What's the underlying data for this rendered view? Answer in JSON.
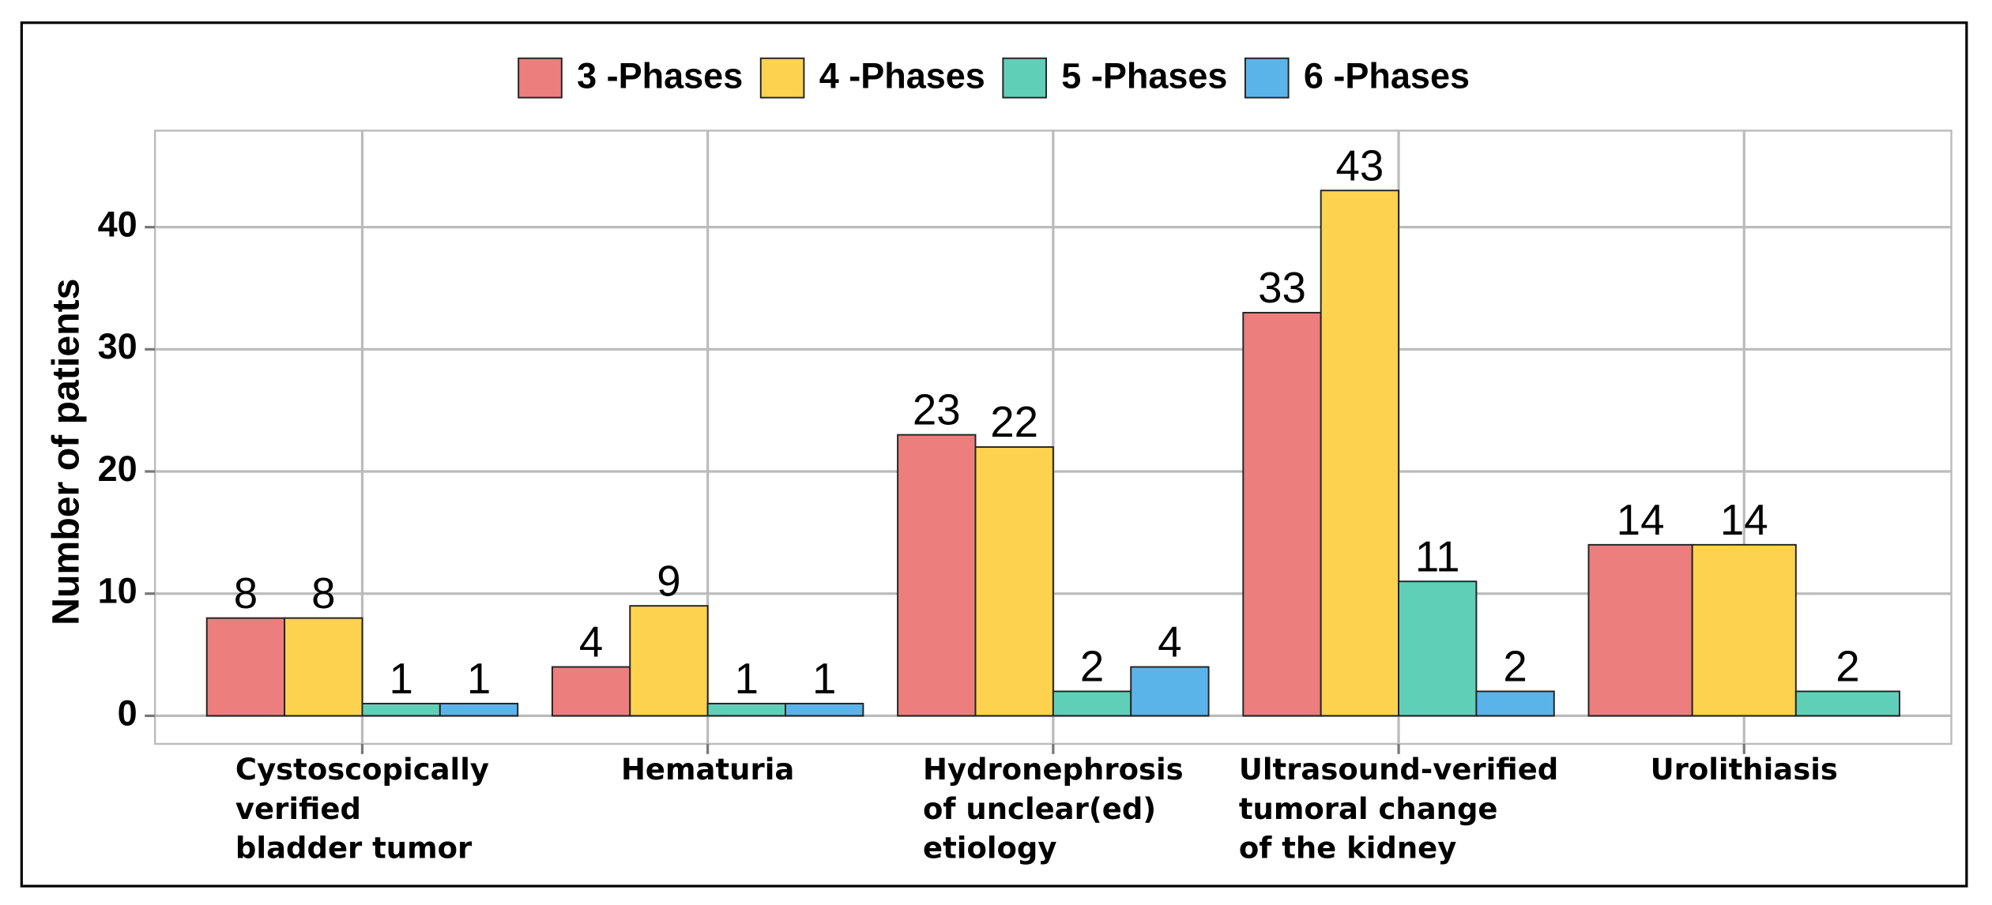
{
  "chart_data": {
    "type": "bar",
    "y_label": "Number of patients",
    "categories": [
      "Cystoscopically\nverified\nbladder tumor",
      "Hematuria",
      "Hydronephrosis\nof unclear(ed)\netiology",
      "Ultrasound-verified\ntumoral change\nof the kidney",
      "Urolithiasis"
    ],
    "series": [
      {
        "name": "3 -Phases",
        "color": "#ec7e7e",
        "values": [
          8,
          4,
          23,
          33,
          14
        ]
      },
      {
        "name": "4 -Phases",
        "color": "#fdd24f",
        "values": [
          8,
          9,
          22,
          43,
          14
        ]
      },
      {
        "name": "5 -Phases",
        "color": "#5fcfb8",
        "values": [
          1,
          1,
          2,
          11,
          2
        ]
      },
      {
        "name": "6 -Phases",
        "color": "#5ab4ea",
        "values": [
          1,
          1,
          4,
          2,
          null
        ]
      }
    ],
    "ylim": [
      -2.3,
      47.9
    ],
    "yticks": [
      0,
      10,
      20,
      30,
      40
    ],
    "grid": true,
    "legend": "top"
  }
}
